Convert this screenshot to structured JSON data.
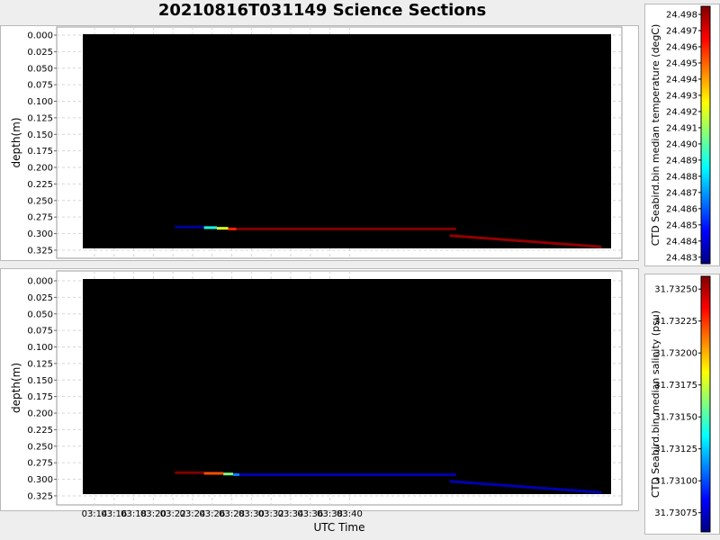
{
  "title": "20210816T031149 Science Sections",
  "chart_data": [
    {
      "type": "heatmap",
      "title": "20210816T031149 Science Sections",
      "xlabel": "",
      "ylabel": "depth(m)",
      "x_range": [
        "03:13:15",
        "03:40:30"
      ],
      "y_range": [
        0.0,
        0.32
      ],
      "y_inverted": true,
      "yticks": [
        "0.000",
        "0.025",
        "0.050",
        "0.075",
        "0.100",
        "0.125",
        "0.150",
        "0.175",
        "0.200",
        "0.225",
        "0.250",
        "0.275",
        "0.300",
        "0.325"
      ],
      "xticks": [
        "03:14",
        "03:16",
        "03:18",
        "03:20",
        "03:22",
        "03:24",
        "03:26",
        "03:28",
        "03:30",
        "03:32",
        "03:34",
        "03:36",
        "03:38",
        "03:40"
      ],
      "background_color": "#000000",
      "grid": true,
      "colorbar": {
        "label": "CTD Seabird.bin median temperature (degC)",
        "range": [
          24.4826,
          24.4985
        ],
        "ticks": [
          "24.483",
          "24.484",
          "24.485",
          "24.486",
          "24.487",
          "24.488",
          "24.489",
          "24.490",
          "24.491",
          "24.492",
          "24.493",
          "24.494",
          "24.495",
          "24.496",
          "24.497",
          "24.498"
        ],
        "colormap": "jet"
      },
      "segments": [
        {
          "t_start": "03:18:00",
          "t_end": "03:19:30",
          "depth": 0.29,
          "value": 24.483
        },
        {
          "t_start": "03:19:30",
          "t_end": "03:20:10",
          "depth": 0.291,
          "value": 24.489
        },
        {
          "t_start": "03:20:10",
          "t_end": "03:20:45",
          "depth": 0.292,
          "value": 24.492
        },
        {
          "t_start": "03:20:45",
          "t_end": "03:21:10",
          "depth": 0.293,
          "value": 24.496
        },
        {
          "t_start": "03:21:10",
          "t_end": "03:32:30",
          "depth": 0.293,
          "value": 24.4985
        },
        {
          "t_start": "03:32:10",
          "t_end": "03:40:00",
          "depth_start": 0.303,
          "depth_end": 0.32,
          "value": 24.4982
        }
      ]
    },
    {
      "type": "heatmap",
      "xlabel": "UTC Time",
      "ylabel": "depth(m)",
      "x_range": [
        "03:13:15",
        "03:40:30"
      ],
      "y_range": [
        0.0,
        0.32
      ],
      "y_inverted": true,
      "yticks": [
        "0.000",
        "0.025",
        "0.050",
        "0.075",
        "0.100",
        "0.125",
        "0.150",
        "0.175",
        "0.200",
        "0.225",
        "0.250",
        "0.275",
        "0.300",
        "0.325"
      ],
      "xticks": [
        "03:14",
        "03:16",
        "03:18",
        "03:20",
        "03:22",
        "03:24",
        "03:26",
        "03:28",
        "03:30",
        "03:32",
        "03:34",
        "03:36",
        "03:38",
        "03:40"
      ],
      "background_color": "#000000",
      "grid": true,
      "colorbar": {
        "label": "CTD Seabird.bin median salinity (psu)",
        "range": [
          31.7306,
          31.7326
        ],
        "ticks": [
          "31.73075",
          "31.73100",
          "31.73125",
          "31.73150",
          "31.73175",
          "31.73200",
          "31.73225",
          "31.73250"
        ],
        "colormap": "jet"
      },
      "segments": [
        {
          "t_start": "03:18:00",
          "t_end": "03:19:30",
          "depth": 0.29,
          "value": 31.7326
        },
        {
          "t_start": "03:19:30",
          "t_end": "03:20:30",
          "depth": 0.291,
          "value": 31.7322
        },
        {
          "t_start": "03:20:30",
          "t_end": "03:21:00",
          "depth": 0.292,
          "value": 31.7316
        },
        {
          "t_start": "03:21:00",
          "t_end": "03:21:20",
          "depth": 0.293,
          "value": 31.7311
        },
        {
          "t_start": "03:21:20",
          "t_end": "03:32:30",
          "depth": 0.293,
          "value": 31.7307
        },
        {
          "t_start": "03:32:10",
          "t_end": "03:40:00",
          "depth_start": 0.303,
          "depth_end": 0.32,
          "value": 31.7307
        }
      ]
    }
  ]
}
